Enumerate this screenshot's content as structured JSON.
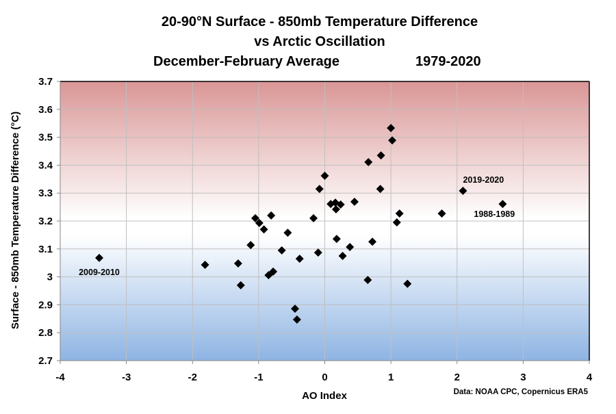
{
  "chart_data": {
    "type": "scatter",
    "title": [
      "20-90°N Surface - 850mb Temperature Difference",
      "vs Arctic Oscillation"
    ],
    "subtitle_left": "December-February Average",
    "subtitle_right": "1979-2020",
    "xlabel": "AO Index",
    "ylabel": "Surface - 850mb Temperature Difference (°C)",
    "xlim": [
      -4,
      4
    ],
    "ylim": [
      2.7,
      3.7
    ],
    "xticks": [
      -4,
      -3,
      -2,
      -1,
      0,
      1,
      2,
      3,
      4
    ],
    "xtick_labels": [
      "-4",
      "-3",
      "-2",
      "-1",
      "0",
      "1",
      "2",
      "3",
      "4"
    ],
    "yticks": [
      2.7,
      2.8,
      2.9,
      3.0,
      3.1,
      3.2,
      3.3,
      3.4,
      3.5,
      3.6,
      3.7
    ],
    "ytick_labels": [
      "2.7",
      "2.8",
      "2.9",
      "3",
      "3.1",
      "3.2",
      "3.3",
      "3.4",
      "3.5",
      "3.6",
      "3.7"
    ],
    "grid": true,
    "background_gradient": {
      "top": "#da9696",
      "middle": "#ffffff",
      "bottom": "#8eb4e3"
    },
    "marker_color": "#000000",
    "source": "Data:  NOAA CPC, Copernicus ERA5",
    "series": [
      {
        "name": "DJF seasons",
        "points": [
          {
            "x": -3.41,
            "y": 3.068
          },
          {
            "x": -1.81,
            "y": 3.043
          },
          {
            "x": -1.31,
            "y": 3.048
          },
          {
            "x": -1.27,
            "y": 2.97
          },
          {
            "x": -1.12,
            "y": 3.114
          },
          {
            "x": -1.05,
            "y": 3.21
          },
          {
            "x": -0.99,
            "y": 3.193
          },
          {
            "x": -0.92,
            "y": 3.17
          },
          {
            "x": -0.81,
            "y": 3.22
          },
          {
            "x": -0.85,
            "y": 3.006
          },
          {
            "x": -0.78,
            "y": 3.019
          },
          {
            "x": -0.65,
            "y": 3.095
          },
          {
            "x": -0.56,
            "y": 3.158
          },
          {
            "x": -0.45,
            "y": 2.886
          },
          {
            "x": -0.42,
            "y": 2.847
          },
          {
            "x": -0.38,
            "y": 3.065
          },
          {
            "x": -0.17,
            "y": 3.21
          },
          {
            "x": -0.1,
            "y": 3.087
          },
          {
            "x": -0.08,
            "y": 3.315
          },
          {
            "x": 0.0,
            "y": 3.362
          },
          {
            "x": 0.09,
            "y": 3.261
          },
          {
            "x": 0.16,
            "y": 3.266
          },
          {
            "x": 0.17,
            "y": 3.242
          },
          {
            "x": 0.18,
            "y": 3.136
          },
          {
            "x": 0.24,
            "y": 3.259
          },
          {
            "x": 0.27,
            "y": 3.075
          },
          {
            "x": 0.38,
            "y": 3.107
          },
          {
            "x": 0.45,
            "y": 3.269
          },
          {
            "x": 0.65,
            "y": 2.989
          },
          {
            "x": 0.66,
            "y": 3.411
          },
          {
            "x": 0.72,
            "y": 3.126
          },
          {
            "x": 0.84,
            "y": 3.315
          },
          {
            "x": 0.85,
            "y": 3.435
          },
          {
            "x": 1.0,
            "y": 3.533
          },
          {
            "x": 1.02,
            "y": 3.489
          },
          {
            "x": 1.09,
            "y": 3.195
          },
          {
            "x": 1.13,
            "y": 3.227
          },
          {
            "x": 1.25,
            "y": 2.975
          },
          {
            "x": 1.77,
            "y": 3.227
          },
          {
            "x": 2.09,
            "y": 3.308
          },
          {
            "x": 2.69,
            "y": 3.261
          }
        ]
      }
    ],
    "annotations": [
      {
        "text": "2009-2010",
        "x": -3.41,
        "y": 3.068,
        "position": "below"
      },
      {
        "text": "2019-2020",
        "x": 2.09,
        "y": 3.308,
        "position": "above-right"
      },
      {
        "text": "1988-1989",
        "x": 2.69,
        "y": 3.261,
        "position": "below-left"
      }
    ]
  }
}
